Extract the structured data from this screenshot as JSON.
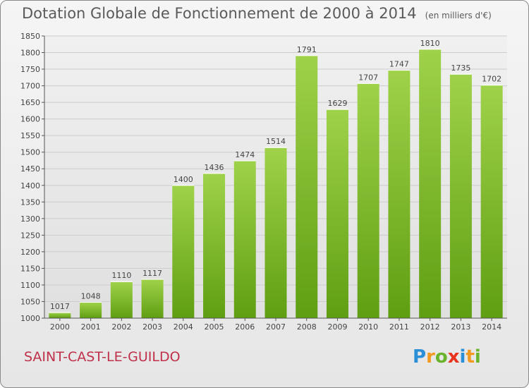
{
  "header": {
    "title": "Dotation Globale de Fonctionnement de 2000 à 2014",
    "subtitle": "(en milliers d'€)"
  },
  "footer": {
    "commune": "SAINT-CAST-LE-GUILDO",
    "logo": {
      "text": "Proxiti",
      "letters": [
        {
          "char": "P",
          "color": "#2a8fd6"
        },
        {
          "char": "r",
          "color": "#f29a1f"
        },
        {
          "char": "o",
          "color": "#6ab42d"
        },
        {
          "char": "x",
          "color": "#e8331f"
        },
        {
          "char": "i",
          "color": "#2a8fd6"
        },
        {
          "char": "t",
          "color": "#f29a1f"
        },
        {
          "char": "i",
          "color": "#6ab42d"
        }
      ]
    }
  },
  "colors": {
    "bar_top": "#9fd24a",
    "bar_bottom": "#5f9e12",
    "axis": "#555555",
    "grid": "#cccccc",
    "title": "#5a5a5a",
    "commune": "#c0304a"
  },
  "chart_data": {
    "type": "bar",
    "categories": [
      "2000",
      "2001",
      "2002",
      "2003",
      "2004",
      "2005",
      "2006",
      "2007",
      "2008",
      "2009",
      "2010",
      "2011",
      "2012",
      "2013",
      "2014"
    ],
    "values": [
      1017,
      1048,
      1110,
      1117,
      1400,
      1436,
      1474,
      1514,
      1791,
      1629,
      1707,
      1747,
      1810,
      1735,
      1702
    ],
    "ylim": [
      1000,
      1850
    ],
    "yticks": [
      1000,
      1050,
      1100,
      1150,
      1200,
      1250,
      1300,
      1350,
      1400,
      1450,
      1500,
      1550,
      1600,
      1650,
      1700,
      1750,
      1800,
      1850
    ],
    "grid": true,
    "data_labels": true
  }
}
